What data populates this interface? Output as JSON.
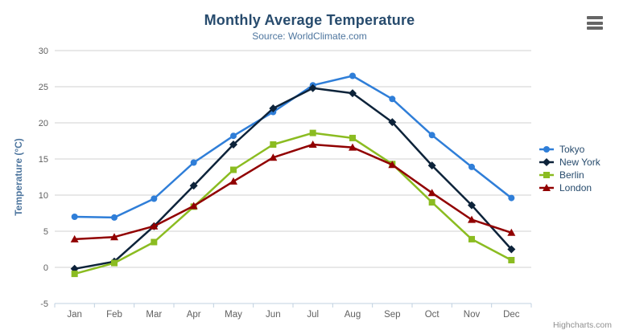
{
  "chart_data": {
    "type": "line",
    "title": "Monthly Average Temperature",
    "subtitle": "Source: WorldClimate.com",
    "credit": "Highcharts.com",
    "categories": [
      "Jan",
      "Feb",
      "Mar",
      "Apr",
      "May",
      "Jun",
      "Jul",
      "Aug",
      "Sep",
      "Oct",
      "Nov",
      "Dec"
    ],
    "xlabel": "",
    "ylabel": "Temperature (°C)",
    "ylim": [
      -5,
      30
    ],
    "ytick_step": 5,
    "grid": true,
    "legend_position": "right-middle-vertical",
    "series": [
      {
        "name": "Tokyo",
        "color": "#2f7ed8",
        "marker": "circle",
        "values": [
          7.0,
          6.9,
          9.5,
          14.5,
          18.2,
          21.5,
          25.2,
          26.5,
          23.3,
          18.3,
          13.9,
          9.6
        ]
      },
      {
        "name": "New York",
        "color": "#0d233a",
        "marker": "diamond",
        "values": [
          -0.2,
          0.8,
          5.7,
          11.3,
          17.0,
          22.0,
          24.8,
          24.1,
          20.1,
          14.1,
          8.6,
          2.5
        ]
      },
      {
        "name": "Berlin",
        "color": "#8bbc21",
        "marker": "square",
        "values": [
          -0.9,
          0.6,
          3.5,
          8.4,
          13.5,
          17.0,
          18.6,
          17.9,
          14.3,
          9.0,
          3.9,
          1.0
        ]
      },
      {
        "name": "London",
        "color": "#910000",
        "marker": "triangle",
        "values": [
          3.9,
          4.2,
          5.7,
          8.5,
          11.9,
          15.2,
          17.0,
          16.6,
          14.2,
          10.3,
          6.6,
          4.8
        ]
      }
    ]
  },
  "ui": {
    "context_menu_icon": "hamburger-icon"
  },
  "colors": {
    "title": "#274b6d",
    "subtitle": "#4d759e",
    "axis_title": "#4d759e",
    "tick_label": "#606060",
    "grid_line": "#d0d0d0",
    "x_axis_line": "#c0d0e0",
    "legend_text": "#274b6d",
    "credit_text": "#909090",
    "menu_icon": "#666666",
    "background": "#ffffff"
  }
}
